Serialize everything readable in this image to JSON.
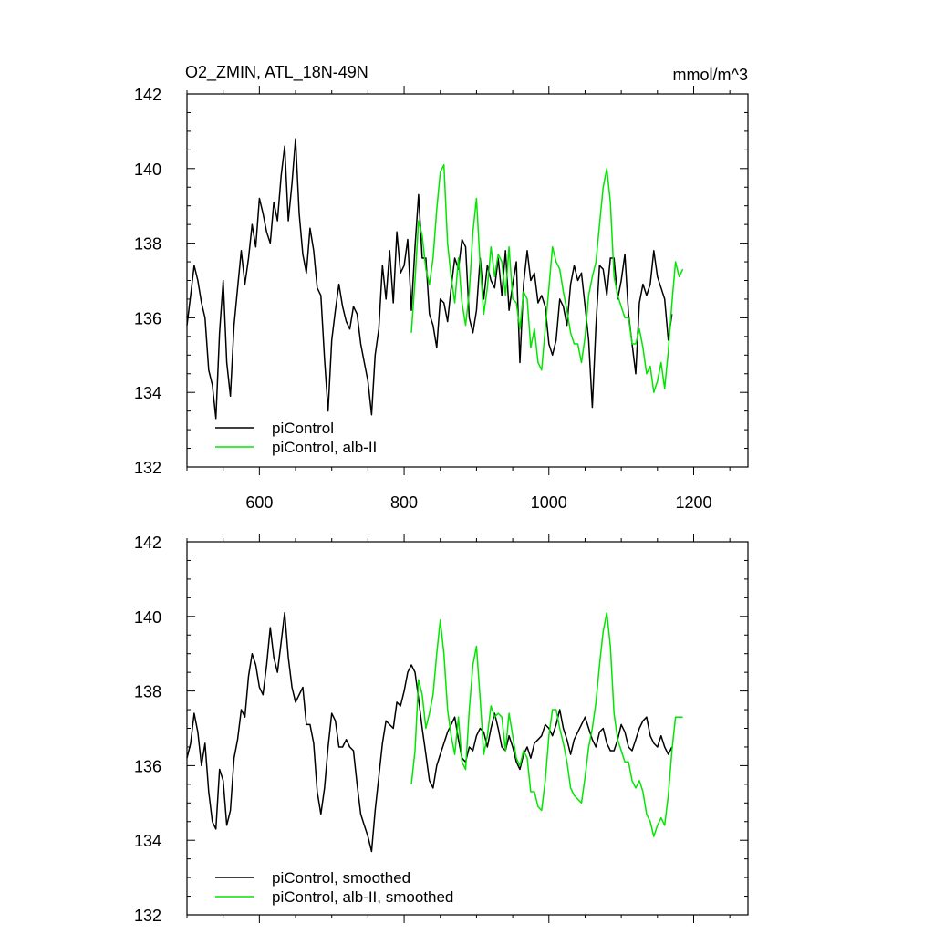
{
  "chart_data": [
    {
      "type": "line",
      "title": "O2_ZMIN, ATL_18N-49N",
      "units": "mmol/m^3",
      "xlim": [
        500,
        1275
      ],
      "ylim": [
        132,
        142
      ],
      "xticks": [
        600,
        800,
        1000,
        1200
      ],
      "xtick_labels": [
        "600",
        "800",
        "1000",
        "1200"
      ],
      "yticks": [
        132,
        134,
        136,
        138,
        140,
        142
      ],
      "ytick_labels": [
        "132",
        "134",
        "136",
        "138",
        "140",
        "142"
      ],
      "legend_position": "bottom-left",
      "series": [
        {
          "name": "piControl",
          "color": "#000000",
          "x_start": 500,
          "x_step": 5,
          "values": [
            135.8,
            136.6,
            137.4,
            137.0,
            136.4,
            136.0,
            134.6,
            134.2,
            133.3,
            135.6,
            137.0,
            134.8,
            133.9,
            135.8,
            136.8,
            137.8,
            136.9,
            137.6,
            138.5,
            137.9,
            139.2,
            138.8,
            138.3,
            138.0,
            139.1,
            138.6,
            139.8,
            140.6,
            138.6,
            139.6,
            140.8,
            138.8,
            137.7,
            137.2,
            138.4,
            137.8,
            136.8,
            136.6,
            134.9,
            133.5,
            135.4,
            136.2,
            136.9,
            136.3,
            135.9,
            135.7,
            136.3,
            136.1,
            135.3,
            134.8,
            134.3,
            133.4,
            135.0,
            135.7,
            137.4,
            136.5,
            137.8,
            136.4,
            138.3,
            137.2,
            137.4,
            138.1,
            136.2,
            137.9,
            139.3,
            137.6,
            137.6,
            136.1,
            135.8,
            135.2,
            136.5,
            136.4,
            135.9,
            136.8,
            137.6,
            137.3,
            138.1,
            137.9,
            136.0,
            135.6,
            136.2,
            137.6,
            136.5,
            137.4,
            137.0,
            136.8,
            137.6,
            136.6,
            137.8,
            136.2,
            136.9,
            137.5,
            134.8,
            136.9,
            137.8,
            137.0,
            137.2,
            136.4,
            136.6,
            136.3,
            135.3,
            135.0,
            135.4,
            136.5,
            136.3,
            135.8,
            136.9,
            137.4,
            137.0,
            137.2,
            136.3,
            135.4,
            133.6,
            135.8,
            137.4,
            137.3,
            136.6,
            137.6,
            137.6,
            136.5,
            137.0,
            137.7,
            136.1,
            135.3,
            134.5,
            136.4,
            136.9,
            136.6,
            136.9,
            137.8,
            137.1,
            136.8,
            136.5,
            135.4,
            136.1
          ]
        },
        {
          "name": "piControl, alb-II",
          "color": "#00e600",
          "x_start": 810,
          "x_step": 5,
          "values": [
            135.6,
            137.0,
            138.6,
            138.2,
            137.3,
            136.9,
            137.6,
            138.9,
            139.9,
            140.1,
            138.0,
            137.1,
            136.4,
            137.6,
            136.4,
            135.8,
            136.7,
            138.3,
            139.2,
            137.4,
            136.1,
            136.8,
            137.9,
            137.1,
            137.7,
            137.5,
            136.6,
            137.9,
            136.5,
            136.4,
            135.7,
            136.7,
            136.5,
            135.2,
            135.7,
            134.8,
            134.6,
            135.7,
            136.8,
            137.9,
            137.5,
            137.3,
            136.7,
            136.2,
            135.6,
            135.3,
            135.3,
            134.8,
            135.5,
            136.6,
            137.1,
            137.5,
            138.5,
            139.5,
            140.0,
            139.1,
            137.1,
            136.6,
            136.3,
            136.0,
            136.0,
            135.3,
            135.3,
            135.7,
            135.2,
            134.5,
            134.7,
            134.0,
            134.3,
            134.8,
            134.1,
            135.1,
            136.4,
            137.5,
            137.1,
            137.3
          ]
        }
      ]
    },
    {
      "type": "line",
      "xlim": [
        500,
        1275
      ],
      "ylim": [
        132,
        142
      ],
      "xticks": [
        600,
        800,
        1000,
        1200
      ],
      "yticks": [
        132,
        134,
        136,
        138,
        140,
        142
      ],
      "ytick_labels": [
        "132",
        "134",
        "136",
        "138",
        "140",
        "142"
      ],
      "legend_position": "bottom-left",
      "series": [
        {
          "name": "piControl, smoothed",
          "color": "#000000",
          "x_start": 500,
          "x_step": 5,
          "values": [
            136.2,
            136.6,
            137.4,
            136.9,
            136.0,
            136.6,
            135.3,
            134.5,
            134.3,
            135.9,
            135.6,
            134.4,
            134.8,
            136.2,
            136.7,
            137.5,
            137.3,
            138.4,
            139.0,
            138.7,
            138.1,
            137.9,
            138.7,
            139.7,
            138.9,
            138.5,
            139.3,
            140.1,
            138.9,
            138.1,
            137.7,
            137.9,
            138.1,
            137.1,
            137.1,
            136.6,
            135.3,
            134.7,
            135.4,
            136.5,
            137.4,
            137.2,
            136.5,
            136.5,
            136.7,
            136.5,
            136.4,
            135.5,
            134.7,
            134.4,
            134.1,
            133.7,
            134.8,
            135.7,
            136.6,
            137.2,
            137.1,
            137.0,
            137.7,
            137.6,
            138.0,
            138.5,
            138.7,
            138.5,
            137.8,
            137.0,
            136.3,
            135.6,
            135.4,
            136.0,
            136.3,
            136.6,
            136.9,
            137.1,
            137.3,
            136.7,
            136.2,
            136.1,
            136.5,
            136.4,
            136.8,
            137.0,
            136.9,
            136.5,
            137.0,
            137.4,
            137.0,
            136.5,
            136.4,
            136.8,
            136.5,
            136.1,
            135.9,
            136.3,
            136.5,
            136.2,
            136.6,
            136.7,
            136.8,
            137.1,
            137.0,
            136.8,
            137.1,
            137.5,
            137.0,
            136.7,
            136.3,
            136.7,
            136.9,
            137.1,
            137.3,
            137.0,
            136.7,
            136.5,
            136.9,
            137.0,
            136.6,
            136.4,
            136.4,
            136.7,
            137.1,
            136.9,
            136.5,
            136.4,
            136.7,
            137.0,
            137.2,
            137.3,
            136.8,
            136.6,
            136.5,
            136.8,
            136.5,
            136.3,
            136.5
          ]
        },
        {
          "name": "piControl, alb-II, smoothed",
          "color": "#00e600",
          "x_start": 810,
          "x_step": 5,
          "values": [
            135.5,
            136.4,
            138.3,
            137.9,
            137.0,
            137.4,
            137.9,
            139.0,
            139.9,
            139.0,
            137.5,
            136.8,
            136.3,
            137.3,
            136.1,
            135.9,
            137.5,
            138.7,
            139.2,
            137.8,
            136.3,
            136.8,
            137.6,
            137.3,
            137.4,
            137.3,
            136.4,
            137.4,
            136.8,
            136.2,
            136.0,
            136.4,
            136.2,
            135.3,
            135.3,
            134.9,
            134.8,
            135.6,
            136.8,
            137.5,
            137.5,
            137.0,
            136.6,
            136.1,
            135.4,
            135.2,
            135.1,
            135.0,
            135.7,
            136.5,
            137.0,
            137.7,
            138.7,
            139.6,
            140.1,
            139.2,
            137.4,
            136.7,
            136.4,
            136.1,
            136.1,
            135.6,
            135.4,
            135.6,
            135.3,
            134.7,
            134.5,
            134.1,
            134.4,
            134.6,
            134.4,
            135.2,
            136.4,
            137.3,
            137.3,
            137.3
          ]
        }
      ]
    }
  ]
}
